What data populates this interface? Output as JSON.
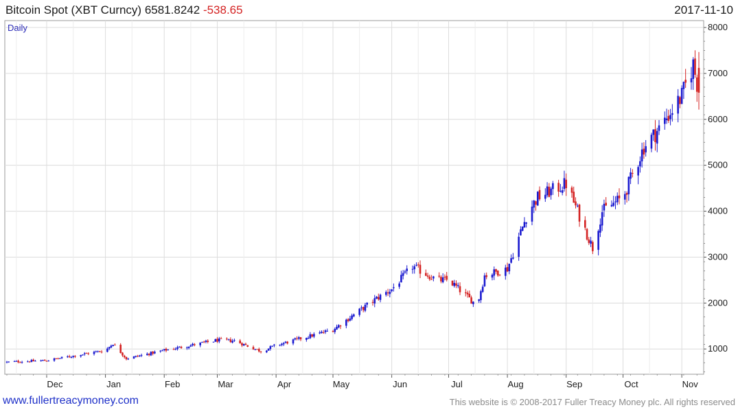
{
  "header": {
    "instrument": "Bitcoin Spot (XBT Curncy)",
    "last": "6581.8242",
    "change": "-538.65",
    "date": "2017-11-10"
  },
  "footer": {
    "site": "www.fullertreacymoney.com",
    "copyright": "This website is © 2008-2017 Fuller Treacy Money plc. All rights reserved"
  },
  "colors": {
    "up": "#1a1ad0",
    "down": "#d42222",
    "grid": "#dcdcdc"
  },
  "chart_data": {
    "type": "candlestick",
    "period_label": "Daily",
    "x_ticks": [
      "Dec",
      "Jan",
      "Feb",
      "Mar",
      "Apr",
      "May",
      "Jun",
      "Jul",
      "Aug",
      "Sep",
      "Oct",
      "Nov"
    ],
    "y_ticks": [
      1000,
      2000,
      3000,
      4000,
      5000,
      6000,
      7000,
      8000
    ],
    "ylim": [
      450,
      8150
    ],
    "grid": true,
    "closes_approx": {
      "dates": [
        "2016-11-10",
        "2016-12-01",
        "2017-01-01",
        "2017-01-05",
        "2017-01-12",
        "2017-02-01",
        "2017-03-01",
        "2017-03-10",
        "2017-03-24",
        "2017-04-01",
        "2017-05-01",
        "2017-05-24",
        "2017-06-01",
        "2017-06-12",
        "2017-06-25",
        "2017-07-01",
        "2017-07-16",
        "2017-07-20",
        "2017-08-01",
        "2017-08-05",
        "2017-08-12",
        "2017-08-17",
        "2017-09-01",
        "2017-09-15",
        "2017-09-20",
        "2017-10-01",
        "2017-10-12",
        "2017-10-20",
        "2017-11-01",
        "2017-11-07",
        "2017-11-10"
      ],
      "values": [
        715,
        750,
        970,
        1120,
        790,
        970,
        1190,
        1180,
        950,
        1080,
        1420,
        2100,
        2300,
        2800,
        2500,
        2500,
        1950,
        2600,
        2750,
        3200,
        4000,
        4300,
        4600,
        3200,
        4000,
        4300,
        5400,
        5800,
        6500,
        7200,
        6580
      ]
    }
  }
}
